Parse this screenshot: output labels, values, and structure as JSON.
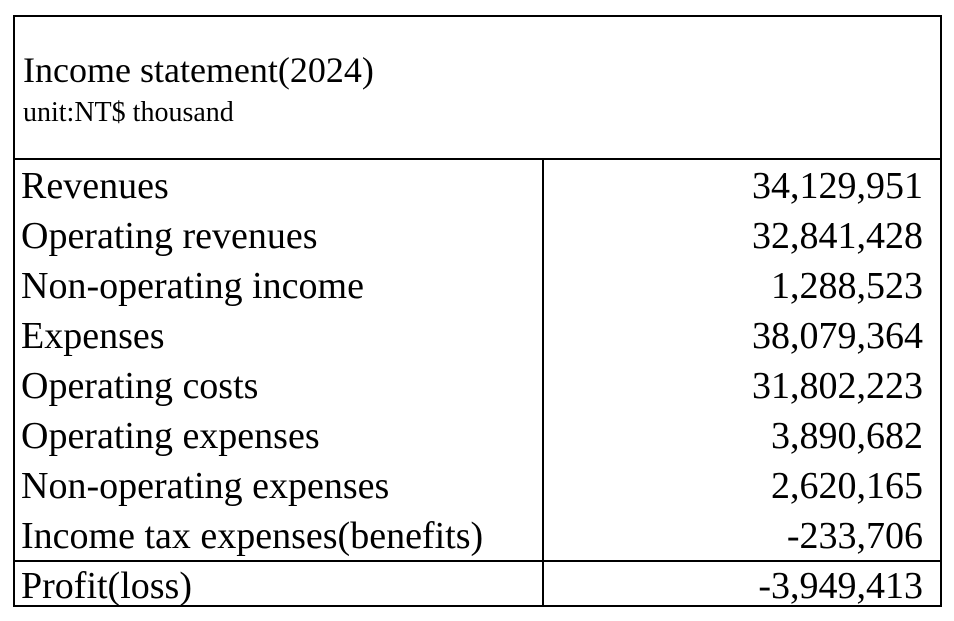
{
  "header": {
    "title": "Income statement(2024)",
    "unit": "unit:NT$ thousand"
  },
  "rows": [
    {
      "label": "Revenues",
      "value": "34,129,951"
    },
    {
      "label": "Operating revenues",
      "value": "32,841,428"
    },
    {
      "label": "Non-operating income",
      "value": "1,288,523"
    },
    {
      "label": "Expenses",
      "value": "38,079,364"
    },
    {
      "label": "Operating costs",
      "value": "31,802,223"
    },
    {
      "label": "Operating expenses",
      "value": "3,890,682"
    },
    {
      "label": "Non-operating expenses",
      "value": "2,620,165"
    },
    {
      "label": "Income tax expenses(benefits)",
      "value": "-233,706"
    },
    {
      "label": "Profit(loss)",
      "value": "-3,949,413"
    }
  ]
}
